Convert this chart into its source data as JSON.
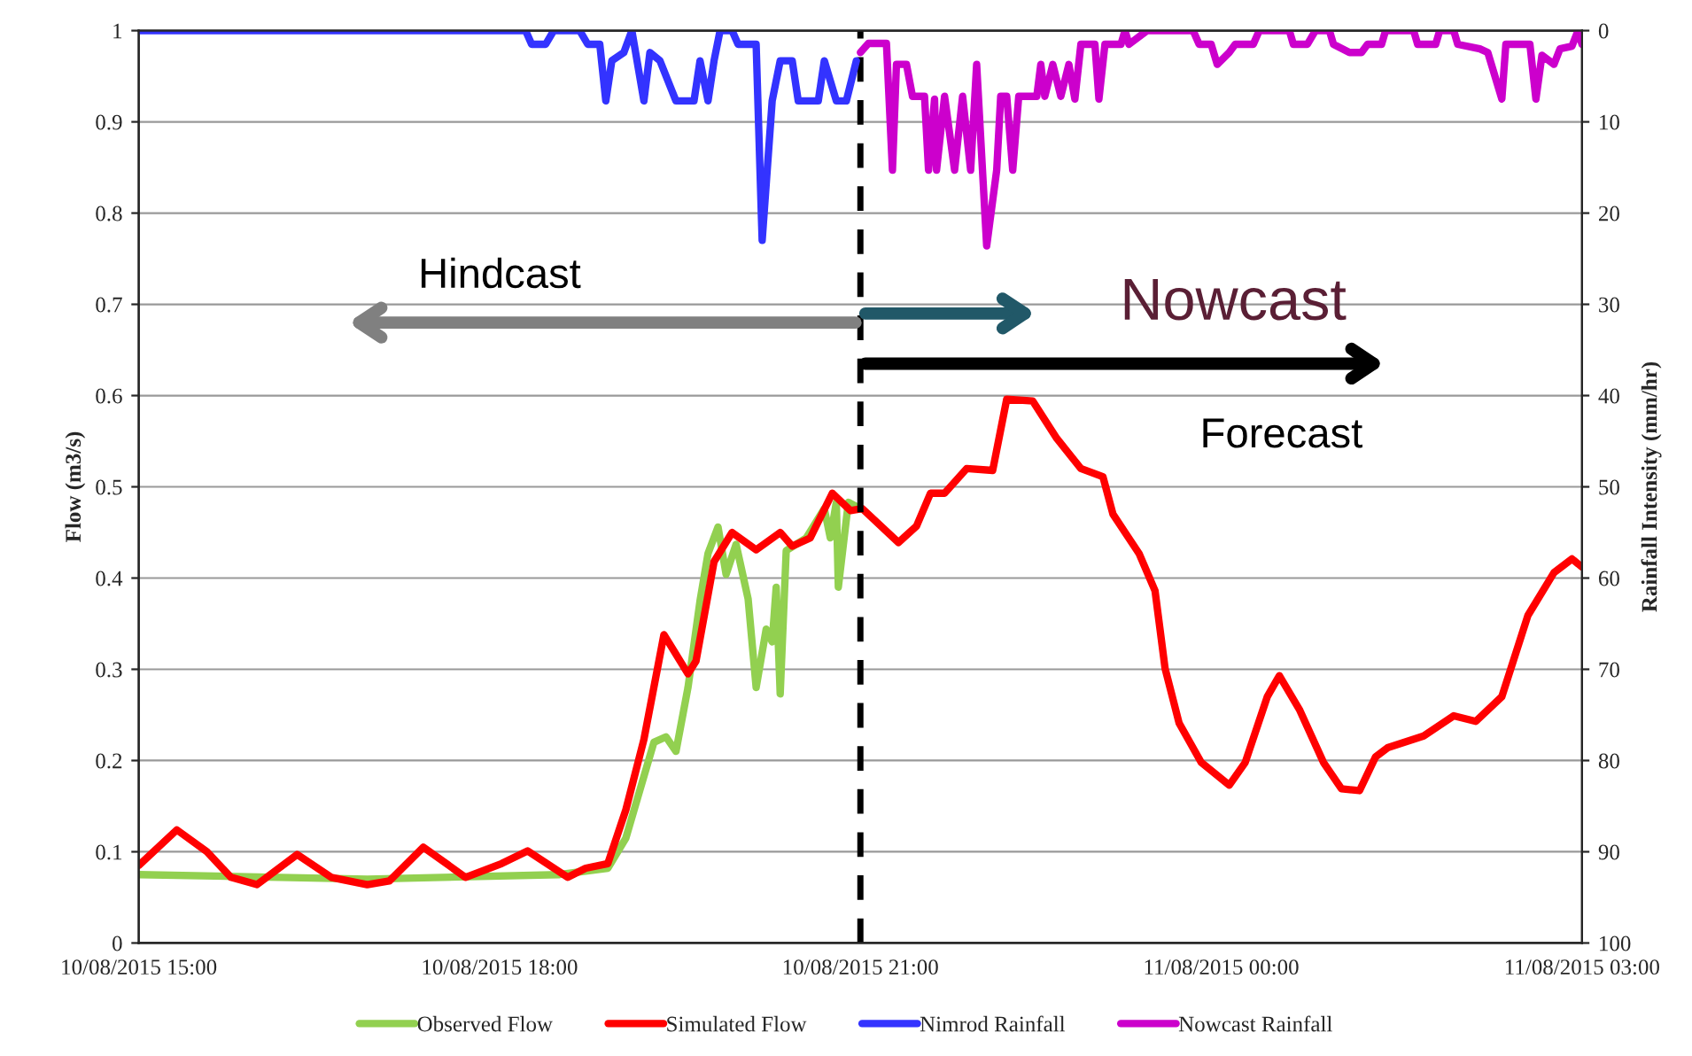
{
  "chart_data": {
    "type": "line",
    "xlim": [
      "2015-08-10T15:00",
      "2015-08-11T03:00"
    ],
    "xticks": [
      {
        "value": "2015-08-10T15:00",
        "label": "10/08/2015 15:00"
      },
      {
        "value": "2015-08-10T18:00",
        "label": "10/08/2015 18:00"
      },
      {
        "value": "2015-08-10T21:00",
        "label": "10/08/2015 21:00"
      },
      {
        "value": "2015-08-11T00:00",
        "label": "11/08/2015 00:00"
      },
      {
        "value": "2015-08-11T03:00",
        "label": "11/08/2015 03:00"
      }
    ],
    "ylim": [
      0,
      1
    ],
    "yticks": [
      0,
      0.1,
      0.2,
      0.3,
      0.4,
      0.5,
      0.6,
      0.7,
      0.8,
      0.9,
      1
    ],
    "y2lim": [
      100,
      0
    ],
    "y2ticks": [
      0,
      10,
      20,
      30,
      40,
      50,
      60,
      70,
      80,
      90,
      100
    ],
    "ylabel": "Flow (m3/s)",
    "y2label": "Rainfall Intensity (mm/hr)",
    "grid": "y",
    "legend": "bottom",
    "series": [
      {
        "name": "Observed Flow",
        "color": "#92d050",
        "x": [
          "2015-08-10T15:00",
          "2015-08-10T16:54",
          "2015-08-10T18:30",
          "2015-08-10T18:54",
          "2015-08-10T19:03",
          "2015-08-10T19:09",
          "2015-08-10T19:17",
          "2015-08-10T19:23",
          "2015-08-10T19:28",
          "2015-08-10T19:34",
          "2015-08-10T19:40",
          "2015-08-10T19:44",
          "2015-08-10T19:49",
          "2015-08-10T19:53",
          "2015-08-10T19:58",
          "2015-08-10T20:04",
          "2015-08-10T20:08",
          "2015-08-10T20:13",
          "2015-08-10T20:16",
          "2015-08-10T20:18",
          "2015-08-10T20:20",
          "2015-08-10T20:23",
          "2015-08-10T20:33",
          "2015-08-10T20:42",
          "2015-08-10T20:45",
          "2015-08-10T20:48",
          "2015-08-10T20:49",
          "2015-08-10T20:54",
          "2015-08-10T21:00"
        ],
        "values": [
          0.075,
          0.07,
          0.075,
          0.082,
          0.115,
          0.16,
          0.22,
          0.226,
          0.21,
          0.28,
          0.375,
          0.427,
          0.456,
          0.404,
          0.437,
          0.377,
          0.28,
          0.344,
          0.33,
          0.39,
          0.273,
          0.43,
          0.444,
          0.476,
          0.444,
          0.483,
          0.39,
          0.483,
          0.476
        ]
      },
      {
        "name": "Simulated Flow",
        "color": "#ff0000",
        "x": [
          "2015-08-10T15:00",
          "2015-08-10T15:19",
          "2015-08-10T15:34",
          "2015-08-10T15:46",
          "2015-08-10T15:59",
          "2015-08-10T16:19",
          "2015-08-10T16:36",
          "2015-08-10T16:54",
          "2015-08-10T17:05",
          "2015-08-10T17:22",
          "2015-08-10T17:43",
          "2015-08-10T18:01",
          "2015-08-10T18:14",
          "2015-08-10T18:34",
          "2015-08-10T18:43",
          "2015-08-10T18:54",
          "2015-08-10T19:03",
          "2015-08-10T19:12",
          "2015-08-10T19:22",
          "2015-08-10T19:34",
          "2015-08-10T19:38",
          "2015-08-10T19:47",
          "2015-08-10T19:56",
          "2015-08-10T20:08",
          "2015-08-10T20:20",
          "2015-08-10T20:26",
          "2015-08-10T20:35",
          "2015-08-10T20:46",
          "2015-08-10T20:55",
          "2015-08-10T21:01",
          "2015-08-10T21:19",
          "2015-08-10T21:28",
          "2015-08-10T21:35",
          "2015-08-10T21:42",
          "2015-08-10T21:53",
          "2015-08-10T22:06",
          "2015-08-10T22:13",
          "2015-08-10T22:26",
          "2015-08-10T22:38",
          "2015-08-10T22:50",
          "2015-08-10T23:01",
          "2015-08-10T23:06",
          "2015-08-10T23:19",
          "2015-08-10T23:27",
          "2015-08-10T23:32",
          "2015-08-10T23:39",
          "2015-08-10T23:50",
          "2015-08-11T00:04",
          "2015-08-11T00:12",
          "2015-08-11T00:23",
          "2015-08-11T00:29",
          "2015-08-11T00:39",
          "2015-08-11T00:51",
          "2015-08-11T01:00",
          "2015-08-11T01:09",
          "2015-08-11T01:17",
          "2015-08-11T01:23",
          "2015-08-11T01:41",
          "2015-08-11T01:56",
          "2015-08-11T02:07",
          "2015-08-11T02:20",
          "2015-08-11T02:33",
          "2015-08-11T02:46",
          "2015-08-11T02:55",
          "2015-08-11T03:00"
        ],
        "values": [
          0.085,
          0.124,
          0.1,
          0.072,
          0.064,
          0.097,
          0.072,
          0.064,
          0.068,
          0.105,
          0.072,
          0.087,
          0.101,
          0.072,
          0.082,
          0.087,
          0.146,
          0.223,
          0.338,
          0.295,
          0.309,
          0.418,
          0.45,
          0.431,
          0.45,
          0.435,
          0.444,
          0.493,
          0.474,
          0.476,
          0.439,
          0.457,
          0.493,
          0.493,
          0.52,
          0.518,
          0.596,
          0.594,
          0.553,
          0.52,
          0.511,
          0.47,
          0.427,
          0.386,
          0.301,
          0.241,
          0.198,
          0.173,
          0.198,
          0.27,
          0.293,
          0.256,
          0.198,
          0.169,
          0.167,
          0.204,
          0.214,
          0.227,
          0.249,
          0.243,
          0.27,
          0.359,
          0.406,
          0.421,
          0.412
        ]
      },
      {
        "name": "Nimrod Rainfall",
        "color": "#3333ff",
        "axis": "y2",
        "x": [
          "2015-08-10T15:00",
          "2015-08-10T18:13",
          "2015-08-10T18:16",
          "2015-08-10T18:23",
          "2015-08-10T18:27",
          "2015-08-10T18:40",
          "2015-08-10T18:44",
          "2015-08-10T18:50",
          "2015-08-10T18:53",
          "2015-08-10T18:56",
          "2015-08-10T19:02",
          "2015-08-10T19:06",
          "2015-08-10T19:12",
          "2015-08-10T19:15",
          "2015-08-10T19:20",
          "2015-08-10T19:28",
          "2015-08-10T19:37",
          "2015-08-10T19:40",
          "2015-08-10T19:44",
          "2015-08-10T19:47",
          "2015-08-10T19:50",
          "2015-08-10T19:56",
          "2015-08-10T19:59",
          "2015-08-10T20:08",
          "2015-08-10T20:11",
          "2015-08-10T20:16",
          "2015-08-10T20:20",
          "2015-08-10T20:26",
          "2015-08-10T20:29",
          "2015-08-10T20:39",
          "2015-08-10T20:42",
          "2015-08-10T20:48",
          "2015-08-10T20:53",
          "2015-08-10T20:58"
        ],
        "values": [
          0,
          0,
          1.5,
          1.5,
          0,
          0,
          1.5,
          1.5,
          7.7,
          3.3,
          2.4,
          0,
          7.7,
          2.4,
          3.3,
          7.7,
          7.7,
          3.3,
          7.7,
          3.3,
          0,
          0,
          1.5,
          1.5,
          23,
          7.7,
          3.3,
          3.3,
          7.7,
          7.7,
          3.3,
          7.7,
          7.7,
          3.3
        ]
      },
      {
        "name": "Nowcast Rainfall",
        "color": "#cc00cc",
        "axis": "y2",
        "x": [
          "2015-08-10T21:00",
          "2015-08-10T21:04",
          "2015-08-10T21:13",
          "2015-08-10T21:16",
          "2015-08-10T21:18",
          "2015-08-10T21:23",
          "2015-08-10T21:26",
          "2015-08-10T21:32",
          "2015-08-10T21:34",
          "2015-08-10T21:37",
          "2015-08-10T21:38",
          "2015-08-10T21:42",
          "2015-08-10T21:47",
          "2015-08-10T21:51",
          "2015-08-10T21:55",
          "2015-08-10T21:58",
          "2015-08-10T22:03",
          "2015-08-10T22:08",
          "2015-08-10T22:10",
          "2015-08-10T22:13",
          "2015-08-10T22:16",
          "2015-08-10T22:19",
          "2015-08-10T22:28",
          "2015-08-10T22:30",
          "2015-08-10T22:32",
          "2015-08-10T22:36",
          "2015-08-10T22:40",
          "2015-08-10T22:44",
          "2015-08-10T22:47",
          "2015-08-10T22:50",
          "2015-08-10T22:57",
          "2015-08-10T22:59",
          "2015-08-10T23:02",
          "2015-08-10T23:10",
          "2015-08-10T23:12",
          "2015-08-10T23:14",
          "2015-08-10T23:23",
          "2015-08-10T23:46",
          "2015-08-10T23:49",
          "2015-08-10T23:55",
          "2015-08-10T23:58",
          "2015-08-11T00:04",
          "2015-08-11T00:07",
          "2015-08-11T00:16",
          "2015-08-11T00:19",
          "2015-08-11T00:34",
          "2015-08-11T00:36",
          "2015-08-11T00:43",
          "2015-08-11T00:47",
          "2015-08-11T00:54",
          "2015-08-11T00:56",
          "2015-08-11T01:04",
          "2015-08-11T01:10",
          "2015-08-11T01:13",
          "2015-08-11T01:20",
          "2015-08-11T01:22",
          "2015-08-11T01:36",
          "2015-08-11T01:38",
          "2015-08-11T01:47",
          "2015-08-11T01:49",
          "2015-08-11T01:56",
          "2015-08-11T01:58",
          "2015-08-11T02:09",
          "2015-08-11T02:13",
          "2015-08-11T02:20",
          "2015-08-11T02:22",
          "2015-08-11T02:34",
          "2015-08-11T02:37",
          "2015-08-11T02:40",
          "2015-08-11T02:46",
          "2015-08-11T02:49",
          "2015-08-11T02:55",
          "2015-08-11T02:58",
          "2015-08-11T03:00"
        ],
        "values": [
          2.4,
          1.4,
          1.4,
          15.3,
          3.7,
          3.7,
          7.2,
          7.2,
          15.3,
          7.5,
          15.3,
          7.2,
          15.3,
          7.2,
          15.3,
          3.7,
          23.6,
          15.3,
          7.2,
          7.2,
          15.3,
          7.2,
          7.2,
          3.7,
          7.2,
          3.7,
          7.2,
          3.7,
          7.5,
          1.5,
          1.5,
          7.5,
          1.5,
          1.5,
          0,
          1.5,
          0,
          0,
          1.5,
          1.5,
          3.7,
          2.4,
          1.5,
          1.5,
          0,
          0,
          1.5,
          1.5,
          0,
          0,
          1.5,
          2.4,
          2.4,
          1.5,
          1.5,
          0,
          0,
          1.5,
          1.5,
          0,
          0,
          1.5,
          2,
          2.4,
          7.5,
          1.5,
          1.5,
          7.5,
          2.7,
          3.7,
          2,
          1.7,
          0,
          1.5
        ]
      }
    ],
    "ref_lines": [
      {
        "axis": "x",
        "value": "2015-08-10T21:00",
        "color": "#000000",
        "line_style": "dashed"
      }
    ],
    "annotations": [
      "Hindcast",
      "Nowcast",
      "Forecast"
    ]
  }
}
